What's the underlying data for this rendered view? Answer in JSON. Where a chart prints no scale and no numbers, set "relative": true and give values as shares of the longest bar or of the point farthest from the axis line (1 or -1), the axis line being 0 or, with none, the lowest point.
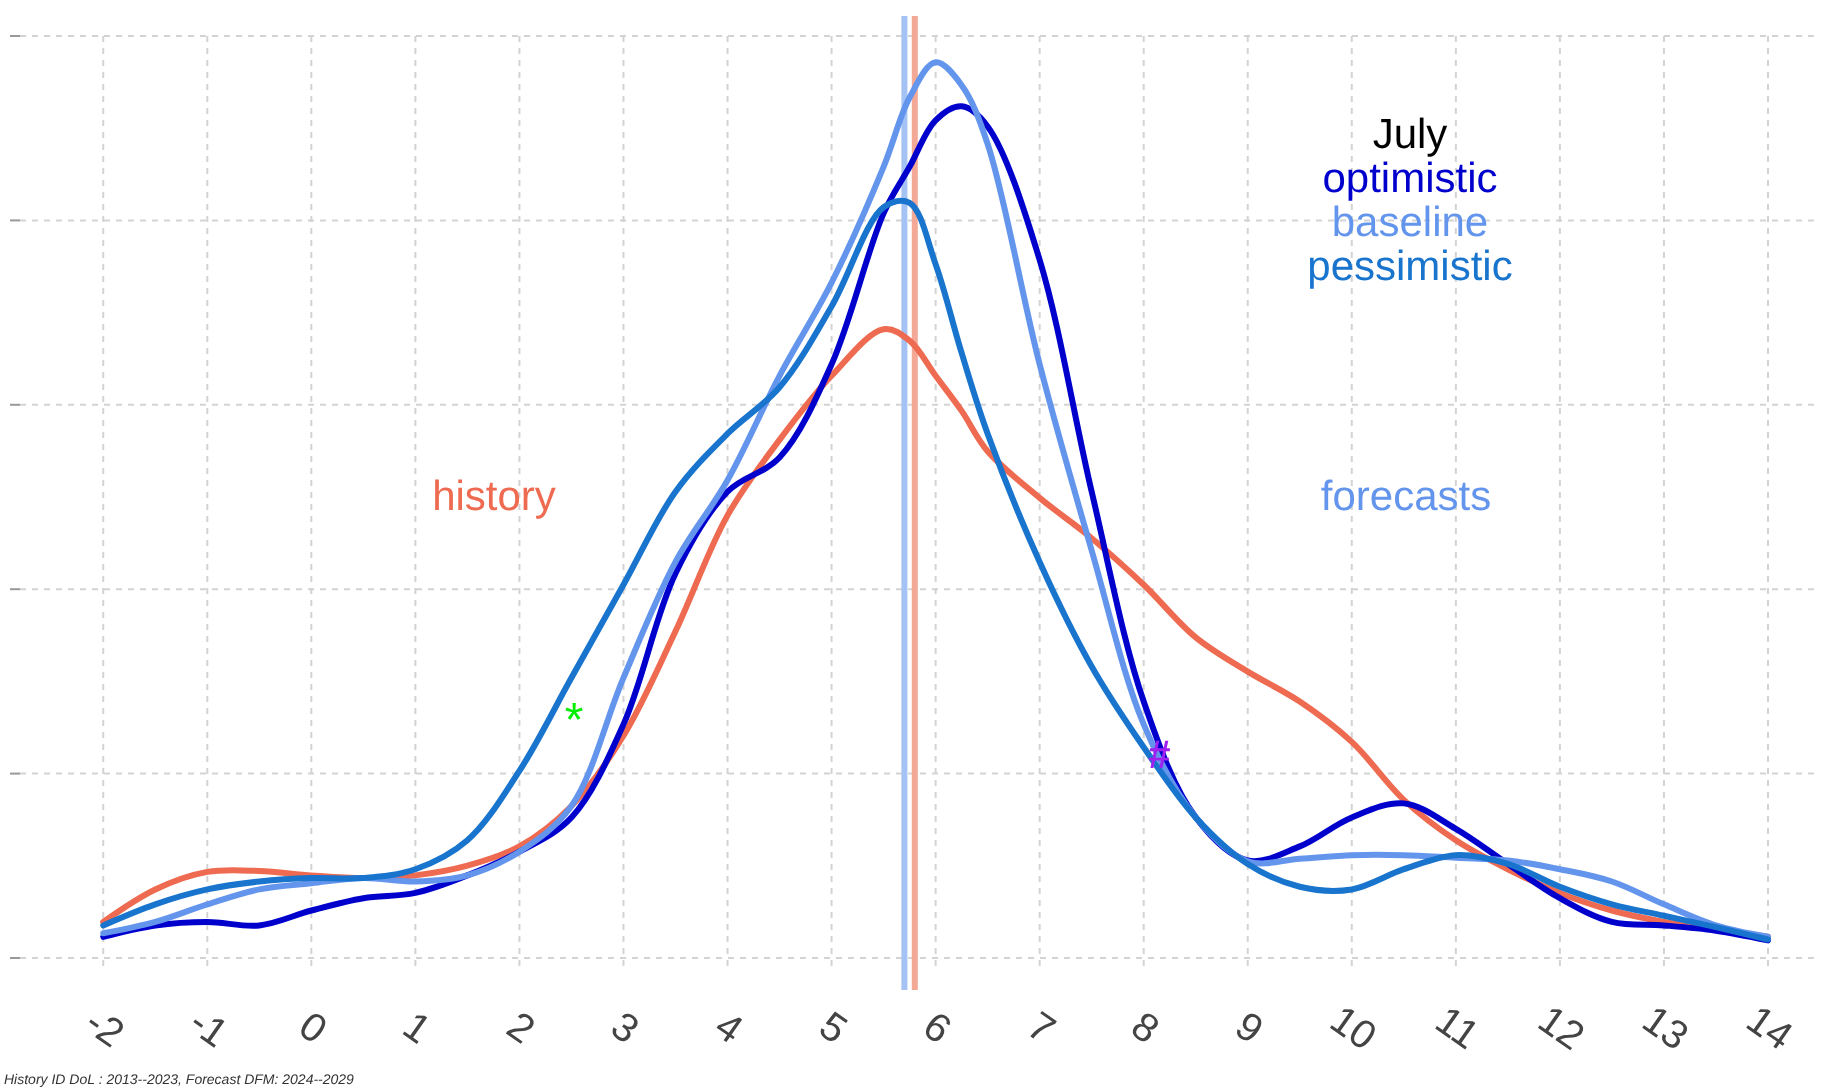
{
  "chart_data": {
    "type": "line",
    "relative": true,
    "legend": "top right",
    "legend_title": "July",
    "grid": true,
    "xlim": [
      -2.8,
      14.5
    ],
    "xticks": [
      -2,
      -1,
      0,
      1,
      2,
      3,
      4,
      5,
      6,
      7,
      8,
      9,
      10,
      11,
      12,
      13,
      14
    ],
    "x": [
      -2,
      -1.5,
      -1,
      -0.5,
      0,
      0.5,
      1,
      1.5,
      2,
      2.5,
      3,
      3.5,
      4,
      4.5,
      5,
      5.5,
      5.75,
      6,
      6.25,
      6.5,
      7,
      7.5,
      8,
      8.5,
      9,
      9.5,
      10,
      10.5,
      11,
      11.5,
      12,
      12.5,
      13,
      13.5,
      14
    ],
    "series": [
      {
        "color": "#ee6a50",
        "values": [
          0.021,
          0.058,
          0.078,
          0.079,
          0.074,
          0.071,
          0.074,
          0.085,
          0.107,
          0.153,
          0.233,
          0.352,
          0.484,
          0.57,
          0.643,
          0.696,
          0.683,
          0.643,
          0.603,
          0.557,
          0.504,
          0.458,
          0.405,
          0.345,
          0.306,
          0.272,
          0.226,
          0.16,
          0.114,
          0.081,
          0.054,
          0.034,
          0.021,
          0.012,
          0.004
        ]
      },
      {
        "name": "optimistic",
        "color": "#0000cd",
        "values": [
          0.004,
          0.017,
          0.021,
          0.017,
          0.034,
          0.048,
          0.054,
          0.074,
          0.101,
          0.14,
          0.246,
          0.418,
          0.511,
          0.55,
          0.656,
          0.828,
          0.881,
          0.934,
          0.95,
          0.927,
          0.775,
          0.511,
          0.272,
          0.14,
          0.091,
          0.107,
          0.14,
          0.156,
          0.127,
          0.087,
          0.048,
          0.021,
          0.017,
          0.011,
          0
        ]
      },
      {
        "name": "baseline",
        "color": "#6495ed",
        "values": [
          0.008,
          0.021,
          0.041,
          0.058,
          0.065,
          0.071,
          0.067,
          0.074,
          0.101,
          0.153,
          0.299,
          0.431,
          0.524,
          0.643,
          0.749,
          0.881,
          0.96,
          1.0,
          0.974,
          0.907,
          0.656,
          0.444,
          0.246,
          0.14,
          0.09,
          0.093,
          0.097,
          0.097,
          0.094,
          0.091,
          0.081,
          0.067,
          0.041,
          0.017,
          0.004
        ]
      },
      {
        "name": "pessimistic",
        "color": "#1874cd",
        "values": [
          0.017,
          0.041,
          0.058,
          0.067,
          0.071,
          0.071,
          0.081,
          0.114,
          0.193,
          0.299,
          0.405,
          0.511,
          0.577,
          0.63,
          0.722,
          0.835,
          0.84,
          0.77,
          0.669,
          0.577,
          0.431,
          0.312,
          0.22,
          0.14,
          0.087,
          0.061,
          0.058,
          0.081,
          0.097,
          0.087,
          0.061,
          0.041,
          0.028,
          0.015,
          0.001
        ]
      }
    ],
    "ref_lines": [
      {
        "axis": "x",
        "value": 5.7,
        "color": "#a4c2f4"
      },
      {
        "axis": "x",
        "value": 5.8,
        "color": "#f4a896"
      }
    ],
    "annotations": [
      "history",
      "forecasts",
      "*",
      {
        "text": "#",
        "x": 8.15,
        "y": 0.21
      },
      "History ID DoL : 2013--2023, Forecast DFM: 2024--2029"
    ]
  }
}
